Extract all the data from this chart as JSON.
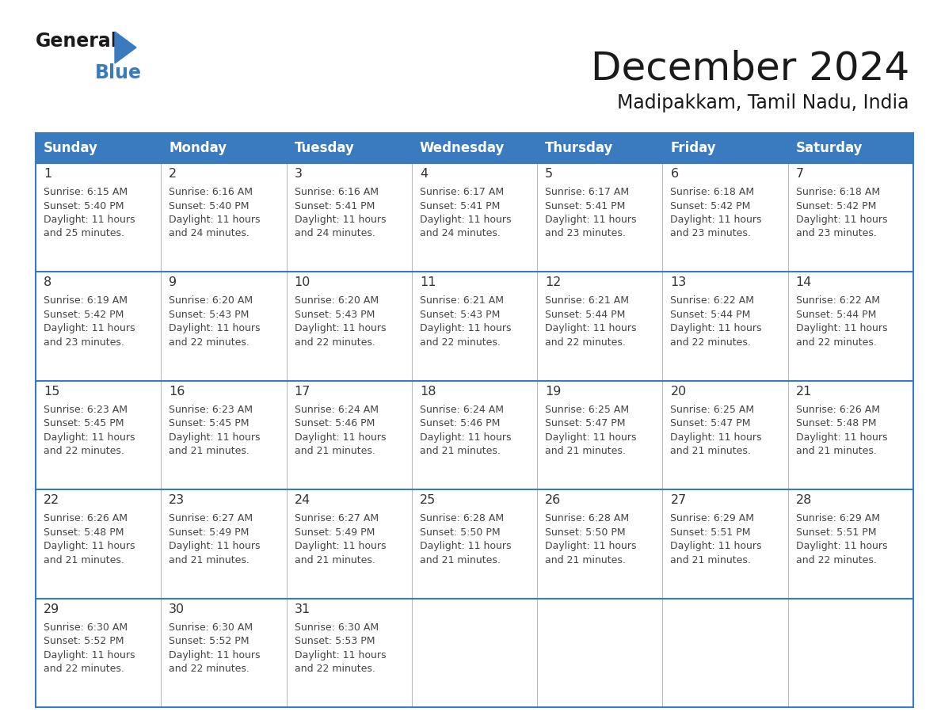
{
  "title": "December 2024",
  "subtitle": "Madipakkam, Tamil Nadu, India",
  "header_bg_color": "#3a7bbf",
  "header_text_color": "#ffffff",
  "border_color": "#3a7bbf",
  "text_color": "#333333",
  "days_of_week": [
    "Sunday",
    "Monday",
    "Tuesday",
    "Wednesday",
    "Thursday",
    "Friday",
    "Saturday"
  ],
  "calendar_data": [
    [
      {
        "day": 1,
        "sunrise": "6:15 AM",
        "sunset": "5:40 PM",
        "daylight_hours": 11,
        "daylight_minutes": 25
      },
      {
        "day": 2,
        "sunrise": "6:16 AM",
        "sunset": "5:40 PM",
        "daylight_hours": 11,
        "daylight_minutes": 24
      },
      {
        "day": 3,
        "sunrise": "6:16 AM",
        "sunset": "5:41 PM",
        "daylight_hours": 11,
        "daylight_minutes": 24
      },
      {
        "day": 4,
        "sunrise": "6:17 AM",
        "sunset": "5:41 PM",
        "daylight_hours": 11,
        "daylight_minutes": 24
      },
      {
        "day": 5,
        "sunrise": "6:17 AM",
        "sunset": "5:41 PM",
        "daylight_hours": 11,
        "daylight_minutes": 23
      },
      {
        "day": 6,
        "sunrise": "6:18 AM",
        "sunset": "5:42 PM",
        "daylight_hours": 11,
        "daylight_minutes": 23
      },
      {
        "day": 7,
        "sunrise": "6:18 AM",
        "sunset": "5:42 PM",
        "daylight_hours": 11,
        "daylight_minutes": 23
      }
    ],
    [
      {
        "day": 8,
        "sunrise": "6:19 AM",
        "sunset": "5:42 PM",
        "daylight_hours": 11,
        "daylight_minutes": 23
      },
      {
        "day": 9,
        "sunrise": "6:20 AM",
        "sunset": "5:43 PM",
        "daylight_hours": 11,
        "daylight_minutes": 22
      },
      {
        "day": 10,
        "sunrise": "6:20 AM",
        "sunset": "5:43 PM",
        "daylight_hours": 11,
        "daylight_minutes": 22
      },
      {
        "day": 11,
        "sunrise": "6:21 AM",
        "sunset": "5:43 PM",
        "daylight_hours": 11,
        "daylight_minutes": 22
      },
      {
        "day": 12,
        "sunrise": "6:21 AM",
        "sunset": "5:44 PM",
        "daylight_hours": 11,
        "daylight_minutes": 22
      },
      {
        "day": 13,
        "sunrise": "6:22 AM",
        "sunset": "5:44 PM",
        "daylight_hours": 11,
        "daylight_minutes": 22
      },
      {
        "day": 14,
        "sunrise": "6:22 AM",
        "sunset": "5:44 PM",
        "daylight_hours": 11,
        "daylight_minutes": 22
      }
    ],
    [
      {
        "day": 15,
        "sunrise": "6:23 AM",
        "sunset": "5:45 PM",
        "daylight_hours": 11,
        "daylight_minutes": 22
      },
      {
        "day": 16,
        "sunrise": "6:23 AM",
        "sunset": "5:45 PM",
        "daylight_hours": 11,
        "daylight_minutes": 21
      },
      {
        "day": 17,
        "sunrise": "6:24 AM",
        "sunset": "5:46 PM",
        "daylight_hours": 11,
        "daylight_minutes": 21
      },
      {
        "day": 18,
        "sunrise": "6:24 AM",
        "sunset": "5:46 PM",
        "daylight_hours": 11,
        "daylight_minutes": 21
      },
      {
        "day": 19,
        "sunrise": "6:25 AM",
        "sunset": "5:47 PM",
        "daylight_hours": 11,
        "daylight_minutes": 21
      },
      {
        "day": 20,
        "sunrise": "6:25 AM",
        "sunset": "5:47 PM",
        "daylight_hours": 11,
        "daylight_minutes": 21
      },
      {
        "day": 21,
        "sunrise": "6:26 AM",
        "sunset": "5:48 PM",
        "daylight_hours": 11,
        "daylight_minutes": 21
      }
    ],
    [
      {
        "day": 22,
        "sunrise": "6:26 AM",
        "sunset": "5:48 PM",
        "daylight_hours": 11,
        "daylight_minutes": 21
      },
      {
        "day": 23,
        "sunrise": "6:27 AM",
        "sunset": "5:49 PM",
        "daylight_hours": 11,
        "daylight_minutes": 21
      },
      {
        "day": 24,
        "sunrise": "6:27 AM",
        "sunset": "5:49 PM",
        "daylight_hours": 11,
        "daylight_minutes": 21
      },
      {
        "day": 25,
        "sunrise": "6:28 AM",
        "sunset": "5:50 PM",
        "daylight_hours": 11,
        "daylight_minutes": 21
      },
      {
        "day": 26,
        "sunrise": "6:28 AM",
        "sunset": "5:50 PM",
        "daylight_hours": 11,
        "daylight_minutes": 21
      },
      {
        "day": 27,
        "sunrise": "6:29 AM",
        "sunset": "5:51 PM",
        "daylight_hours": 11,
        "daylight_minutes": 21
      },
      {
        "day": 28,
        "sunrise": "6:29 AM",
        "sunset": "5:51 PM",
        "daylight_hours": 11,
        "daylight_minutes": 22
      }
    ],
    [
      {
        "day": 29,
        "sunrise": "6:30 AM",
        "sunset": "5:52 PM",
        "daylight_hours": 11,
        "daylight_minutes": 22
      },
      {
        "day": 30,
        "sunrise": "6:30 AM",
        "sunset": "5:52 PM",
        "daylight_hours": 11,
        "daylight_minutes": 22
      },
      {
        "day": 31,
        "sunrise": "6:30 AM",
        "sunset": "5:53 PM",
        "daylight_hours": 11,
        "daylight_minutes": 22
      },
      null,
      null,
      null,
      null
    ]
  ]
}
